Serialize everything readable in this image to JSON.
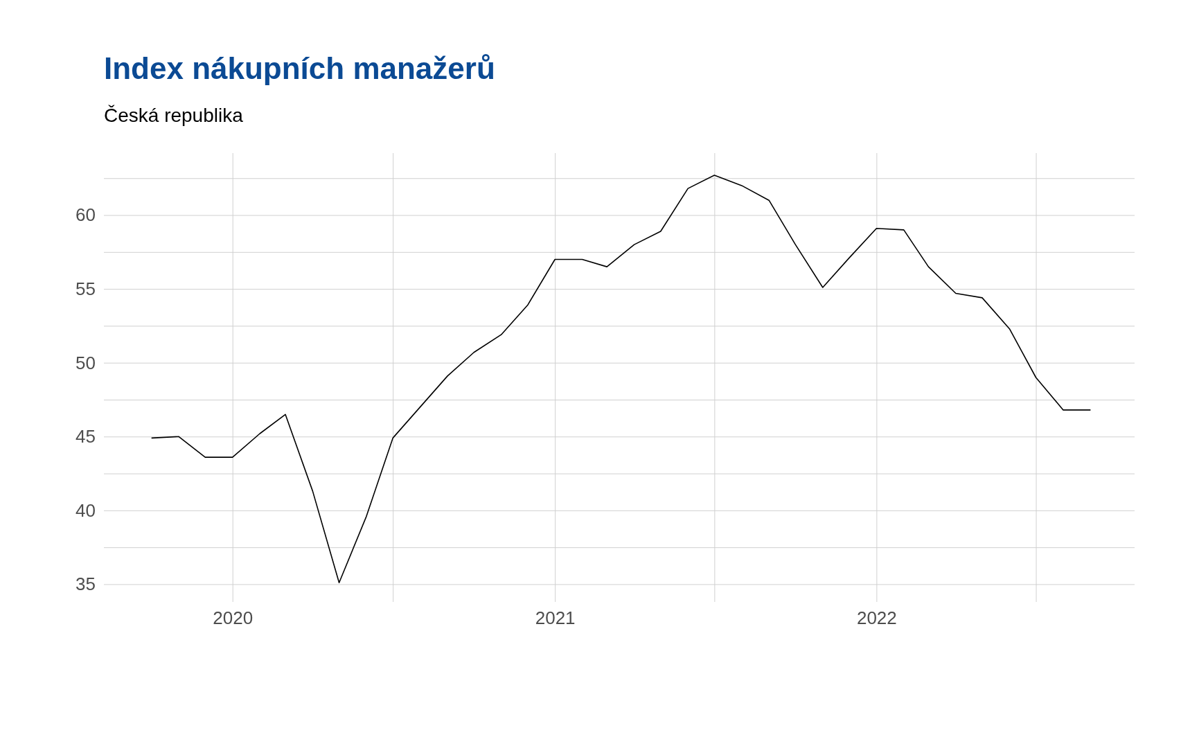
{
  "chart_data": {
    "type": "line",
    "title": "Index nákupních manažerů",
    "subtitle": "Česká republika",
    "x": [
      "2019-10",
      "2019-11",
      "2019-12",
      "2020-01",
      "2020-02",
      "2020-03",
      "2020-04",
      "2020-05",
      "2020-06",
      "2020-07",
      "2020-08",
      "2020-09",
      "2020-10",
      "2020-11",
      "2020-12",
      "2021-01",
      "2021-02",
      "2021-03",
      "2021-04",
      "2021-05",
      "2021-06",
      "2021-07",
      "2021-08",
      "2021-09",
      "2021-10",
      "2021-11",
      "2021-12",
      "2022-01",
      "2022-02",
      "2022-03",
      "2022-04",
      "2022-05",
      "2022-06",
      "2022-07",
      "2022-08",
      "2022-09"
    ],
    "series": [
      {
        "color": "#000000",
        "values": [
          44.9,
          45.0,
          43.6,
          43.6,
          45.2,
          46.5,
          41.3,
          35.1,
          39.6,
          44.9,
          47.0,
          49.1,
          50.7,
          51.9,
          53.9,
          57.0,
          57.0,
          56.5,
          58.0,
          58.9,
          61.8,
          62.7,
          62.0,
          61.0,
          58.0,
          55.1,
          57.1,
          59.1,
          59.0,
          56.5,
          54.7,
          54.4,
          52.3,
          49.0,
          46.8,
          46.8
        ]
      }
    ],
    "xlim": [
      "2019-08-08",
      "2022-10-21"
    ],
    "ylim": [
      33.8,
      64.2
    ],
    "xticks": [
      {
        "value": "2020-01-01",
        "label": "2020"
      },
      {
        "value": "2020-07-01",
        "label": null
      },
      {
        "value": "2021-01-01",
        "label": "2021"
      },
      {
        "value": "2021-07-01",
        "label": null
      },
      {
        "value": "2022-01-01",
        "label": "2022"
      },
      {
        "value": "2022-07-01",
        "label": null
      }
    ],
    "yticks": [
      35,
      {
        "value": 37.5,
        "label": null
      },
      40,
      {
        "value": 42.5,
        "label": null
      },
      45,
      {
        "value": 47.5,
        "label": null
      },
      50,
      {
        "value": 52.5,
        "label": null
      },
      55,
      {
        "value": 57.5,
        "label": null
      },
      60,
      {
        "value": 62.5,
        "label": null
      }
    ],
    "grid": true,
    "marker": "none",
    "line_style": "solid"
  }
}
